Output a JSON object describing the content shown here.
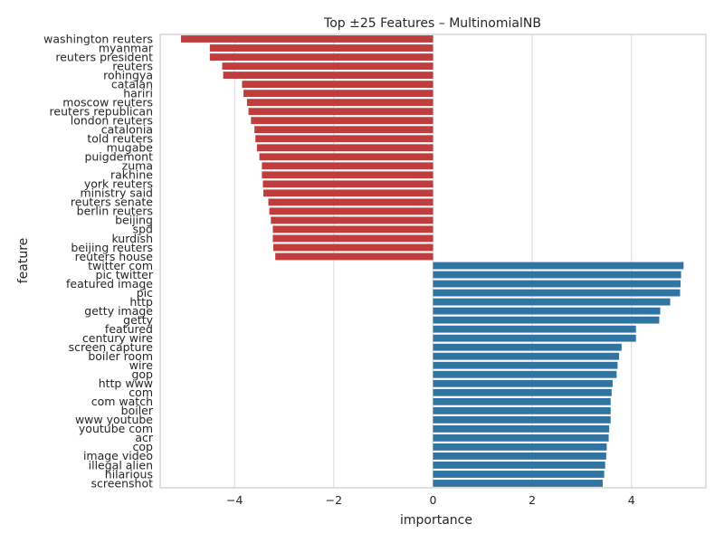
{
  "chart_data": {
    "type": "bar",
    "orientation": "horizontal",
    "title": "Top ±25 Features – MultinomialNB",
    "xlabel": "importance",
    "ylabel": "feature",
    "xlim": [
      -5.5,
      5.5
    ],
    "xticks": [
      -4,
      -2,
      0,
      2,
      4
    ],
    "xtick_labels": [
      "−4",
      "−2",
      "0",
      "2",
      "4"
    ],
    "grid": "vertical",
    "negative_color": "#c03d3e",
    "positive_color": "#3274a1",
    "categories": [
      "washington reuters",
      "myanmar",
      "reuters president",
      "reuters",
      "rohingya",
      "catalan",
      "hariri",
      "moscow reuters",
      "reuters republican",
      "london reuters",
      "catalonia",
      "told reuters",
      "mugabe",
      "puigdemont",
      "zuma",
      "rakhine",
      "york reuters",
      "ministry said",
      "reuters senate",
      "berlin reuters",
      "beijing",
      "spd",
      "kurdish",
      "beijing reuters",
      "reuters house",
      "twitter com",
      "pic twitter",
      "featured image",
      "pic",
      "http",
      "getty image",
      "getty",
      "featured",
      "century wire",
      "screen capture",
      "boiler room",
      "wire",
      "gop",
      "http www",
      "com",
      "com watch",
      "boiler",
      "www youtube",
      "youtube com",
      "acr",
      "cop",
      "image video",
      "illegal alien",
      "hilarious",
      "screenshot"
    ],
    "values": [
      -5.08,
      -4.5,
      -4.5,
      -4.25,
      -4.23,
      -3.85,
      -3.82,
      -3.75,
      -3.72,
      -3.67,
      -3.6,
      -3.58,
      -3.55,
      -3.5,
      -3.45,
      -3.45,
      -3.43,
      -3.42,
      -3.32,
      -3.3,
      -3.27,
      -3.23,
      -3.23,
      -3.22,
      -3.18,
      5.05,
      5.0,
      4.99,
      4.98,
      4.78,
      4.58,
      4.56,
      4.09,
      4.09,
      3.8,
      3.75,
      3.72,
      3.7,
      3.62,
      3.6,
      3.58,
      3.58,
      3.58,
      3.55,
      3.54,
      3.5,
      3.49,
      3.47,
      3.45,
      3.42
    ]
  }
}
